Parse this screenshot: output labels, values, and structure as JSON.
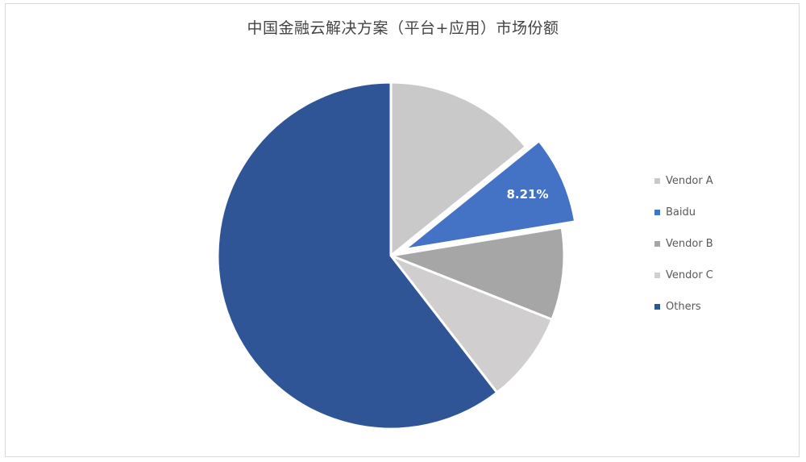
{
  "chart_data": {
    "type": "pie",
    "title": "中国金融云解决方案（平台+应用）市场份额",
    "slices": [
      {
        "name": "Vendor A",
        "value": 14.2,
        "color": "#c9c9c9"
      },
      {
        "name": "Baidu",
        "value": 8.21,
        "color": "#4472c4",
        "label": "8.21%",
        "exploded": true
      },
      {
        "name": "Vendor B",
        "value": 8.6,
        "color": "#a6a6a6"
      },
      {
        "name": "Vendor C",
        "value": 8.5,
        "color": "#d0cece"
      },
      {
        "name": "Others",
        "value": 60.49,
        "color": "#2f5597"
      }
    ],
    "legend_position": "right"
  }
}
